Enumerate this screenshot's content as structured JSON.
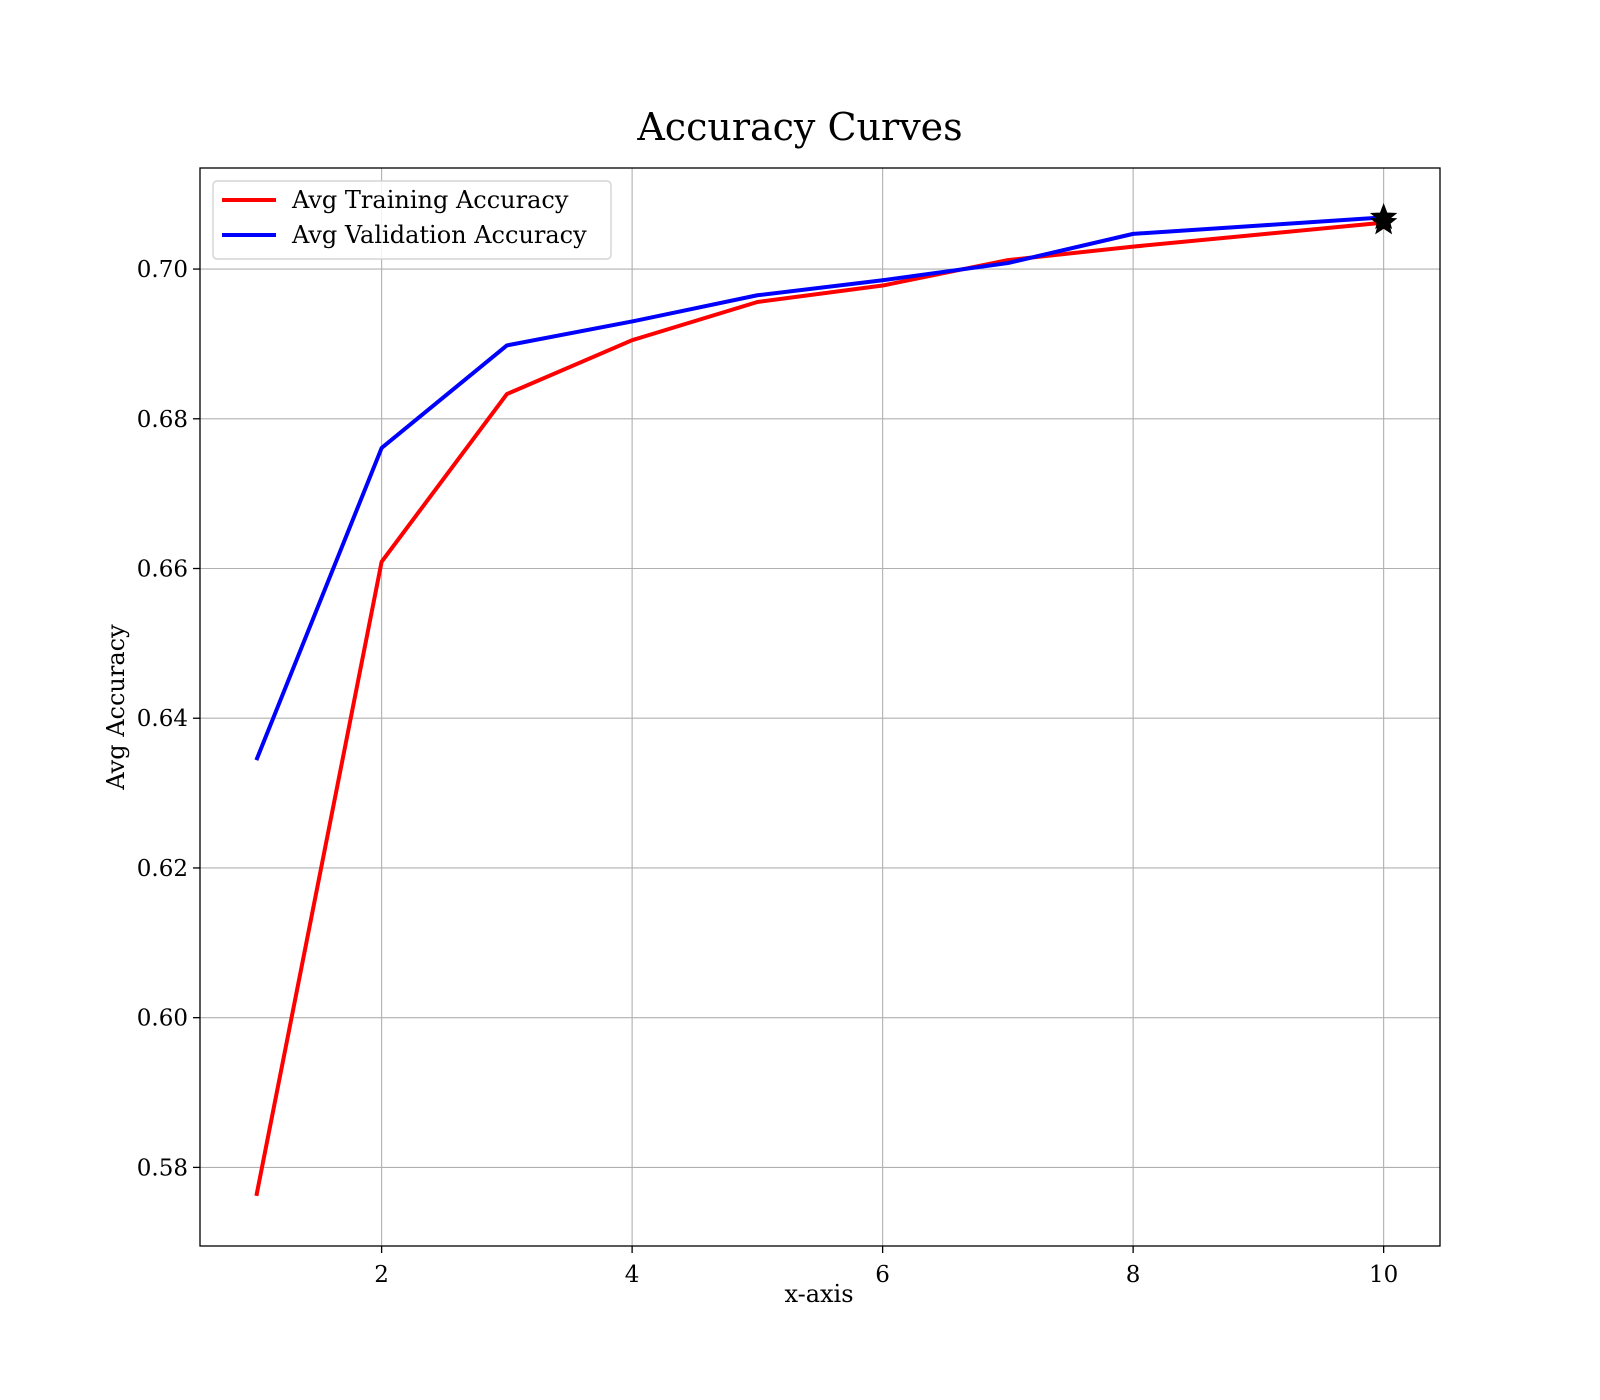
{
  "chart_data": {
    "type": "line",
    "title": "Accuracy Curves",
    "xlabel": "x-axis",
    "ylabel": "Avg Accuracy",
    "x": [
      1,
      2,
      3,
      4,
      5,
      6,
      7,
      8,
      9,
      10
    ],
    "xlim": [
      0.55,
      10.45
    ],
    "ylim": [
      0.5695,
      0.7135
    ],
    "xticks": [
      2,
      4,
      6,
      8,
      10
    ],
    "xtick_labels": [
      "2",
      "4",
      "6",
      "8",
      "10"
    ],
    "yticks": [
      0.58,
      0.6,
      0.62,
      0.64,
      0.66,
      0.68,
      0.7
    ],
    "ytick_labels": [
      "0.58",
      "0.60",
      "0.62",
      "0.64",
      "0.66",
      "0.68",
      "0.70"
    ],
    "grid": true,
    "legend_position": "top-left",
    "series": [
      {
        "name": "Avg Training Accuracy",
        "color": "#ff0000",
        "values": [
          0.5762,
          0.6609,
          0.6833,
          0.6905,
          0.6956,
          0.6978,
          0.7012,
          0.703,
          0.7046,
          0.7062
        ]
      },
      {
        "name": "Avg Validation Accuracy",
        "color": "#0000ff",
        "values": [
          0.6344,
          0.6761,
          0.6898,
          0.693,
          0.6965,
          0.6985,
          0.7008,
          0.7047,
          0.7058,
          0.7069
        ]
      }
    ],
    "markers": [
      {
        "marker": "star-icon",
        "x": 10,
        "y": 0.7062,
        "color": "#000000"
      },
      {
        "marker": "star-icon",
        "x": 10,
        "y": 0.7069,
        "color": "#000000"
      }
    ]
  }
}
